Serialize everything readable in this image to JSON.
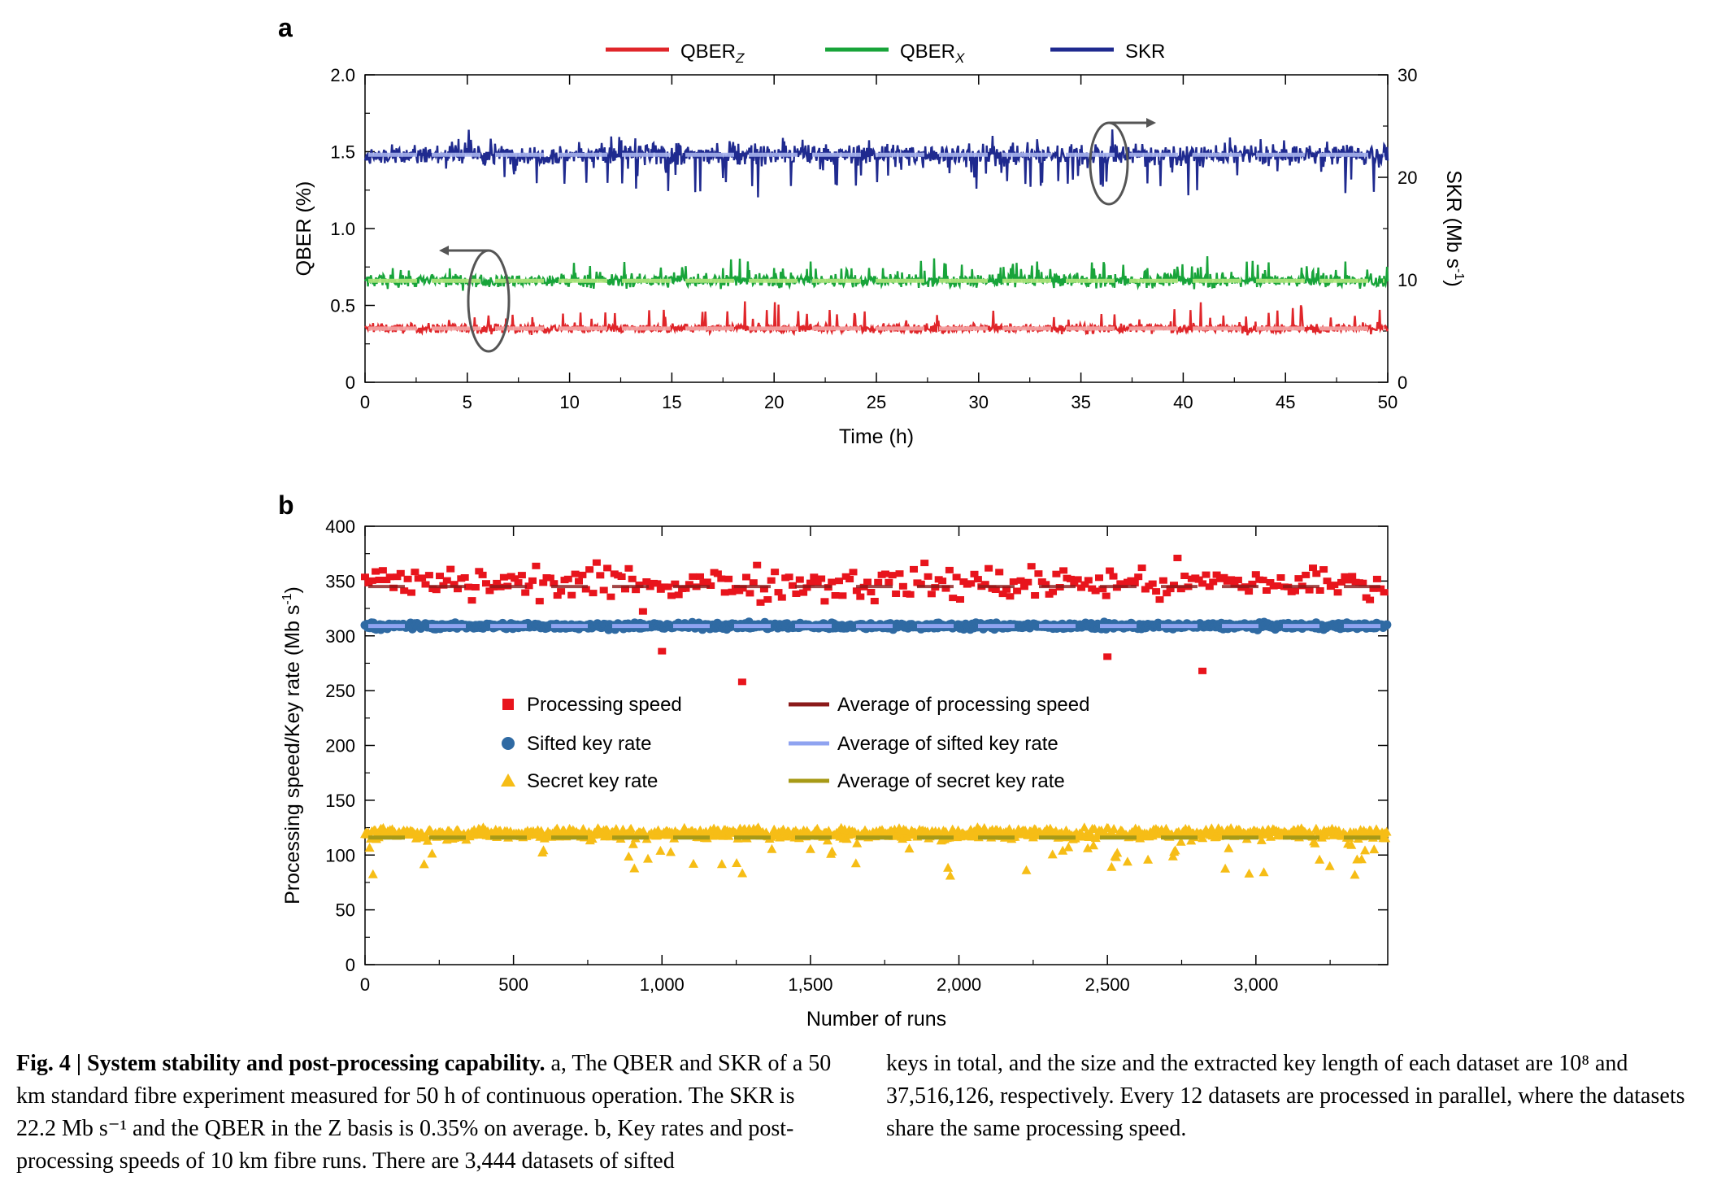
{
  "chart_data": [
    {
      "panel": "a",
      "type": "line",
      "xlabel": "Time (h)",
      "ylabel": "QBER (%)",
      "y2label": "SKR (Mb s",
      "y2label_sup": "-1",
      "y2label_end": ")",
      "xlim": [
        0,
        50
      ],
      "ylim": [
        0,
        2.0
      ],
      "y2lim": [
        0,
        30
      ],
      "xticks": [
        0,
        5,
        10,
        15,
        20,
        25,
        30,
        35,
        40,
        45,
        50
      ],
      "yticks": [
        "0",
        "0.5",
        "1.0",
        "1.5",
        "2.0"
      ],
      "y2ticks": [
        0,
        10,
        20,
        30
      ],
      "grid": false,
      "legend_position": "top",
      "legend": [
        {
          "label": "QBER",
          "sub": "Z",
          "color": "#e0262a"
        },
        {
          "label": "QBER",
          "sub": "X",
          "color": "#18a43a"
        },
        {
          "label": "SKR",
          "sub": "",
          "color": "#1f2a8f"
        }
      ],
      "series": [
        {
          "name": "QBERZ",
          "axis": "left",
          "mean": 0.35,
          "color": "#e0262a",
          "mean_color": "#f4a6a6"
        },
        {
          "name": "QBERX",
          "axis": "left",
          "mean": 0.66,
          "color": "#18a43a",
          "mean_color": "#b2e67e"
        },
        {
          "name": "SKR",
          "axis": "right",
          "mean": 22.2,
          "color": "#1f2a8f",
          "mean_color": "#a7b3ee"
        }
      ]
    },
    {
      "panel": "b",
      "type": "scatter",
      "xlabel": "Number of runs",
      "ylabel": "Processing speed/Key rate (Mb s",
      "ylabel_sup": "-1",
      "ylabel_end": ")",
      "xlim": [
        0,
        3444
      ],
      "ylim": [
        0,
        400
      ],
      "xticks": [
        {
          "v": 0,
          "label": "0"
        },
        {
          "v": 500,
          "label": "500"
        },
        {
          "v": 1000,
          "label": "1,000"
        },
        {
          "v": 1500,
          "label": "1,500"
        },
        {
          "v": 2000,
          "label": "2,000"
        },
        {
          "v": 2500,
          "label": "2,500"
        },
        {
          "v": 3000,
          "label": "3,000"
        }
      ],
      "yticks": [
        0,
        50,
        100,
        150,
        200,
        250,
        300,
        350,
        400
      ],
      "grid": false,
      "legend_position": "center",
      "legend": [
        {
          "label": "Processing speed",
          "marker": "square",
          "color": "#e8141c"
        },
        {
          "label": "Average of processing speed",
          "marker": "dash",
          "color": "#8b1a1a"
        },
        {
          "label": "Sifted key rate",
          "marker": "circle",
          "color": "#2f6aa3"
        },
        {
          "label": "Average of sifted key rate",
          "marker": "dash",
          "color": "#8fa3f0"
        },
        {
          "label": "Secret key rate",
          "marker": "triangle",
          "color": "#f6bd16"
        },
        {
          "label": "Average of secret key rate",
          "marker": "dash",
          "color": "#a79a17"
        }
      ],
      "series": [
        {
          "name": "Processing speed",
          "mean": 345,
          "color": "#e8141c",
          "outliers": [
            [
              1270,
              258
            ],
            [
              2820,
              268
            ],
            [
              1000,
              286
            ],
            [
              2500,
              281
            ]
          ]
        },
        {
          "name": "Sifted key rate",
          "mean": 309,
          "color": "#2f6aa3"
        },
        {
          "name": "Secret key rate",
          "mean": 116,
          "color": "#f6bd16"
        }
      ]
    }
  ],
  "panel_labels": {
    "a": "a",
    "b": "b"
  },
  "caption": {
    "fig_label": "Fig. 4 | System stability and post-processing capability.",
    "left_text": " a, The QBER and SKR of a 50 km standard fibre experiment measured for 50 h of continuous operation. The SKR is 22.2 Mb s⁻¹ and the QBER in the Z basis is 0.35% on average. b, Key rates and post-processing speeds of 10 km fibre runs. There are 3,444 datasets of sifted",
    "right_text": "keys in total, and the size and the extracted key length of each dataset are 10⁸ and 37,516,126, respectively. Every 12 datasets are processed in parallel, where the datasets share the same processing speed."
  }
}
